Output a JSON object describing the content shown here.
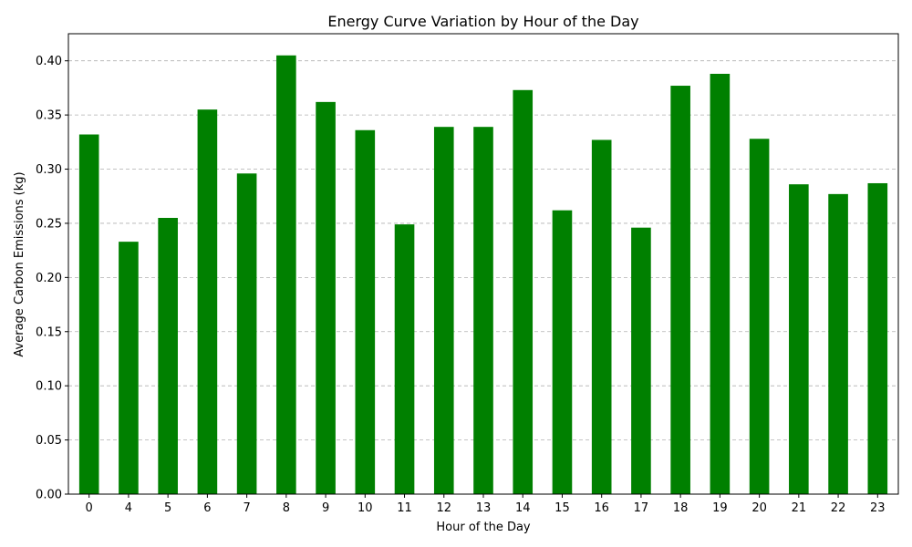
{
  "chart_data": {
    "type": "bar",
    "title": "Energy Curve Variation by Hour of the Day",
    "xlabel": "Hour of the Day",
    "ylabel": "Average Carbon Emissions (kg)",
    "categories": [
      "0",
      "4",
      "5",
      "6",
      "7",
      "8",
      "9",
      "10",
      "11",
      "12",
      "13",
      "14",
      "15",
      "16",
      "17",
      "18",
      "19",
      "20",
      "21",
      "22",
      "23"
    ],
    "values": [
      0.332,
      0.233,
      0.255,
      0.355,
      0.296,
      0.405,
      0.362,
      0.336,
      0.249,
      0.339,
      0.339,
      0.373,
      0.262,
      0.327,
      0.246,
      0.377,
      0.388,
      0.328,
      0.286,
      0.277,
      0.287
    ],
    "ylim": [
      0,
      0.425
    ],
    "yticks": [
      "0.00",
      "0.05",
      "0.10",
      "0.15",
      "0.20",
      "0.25",
      "0.30",
      "0.35",
      "0.40"
    ],
    "grid": "y-dashed",
    "bar_color": "#008000",
    "grid_color": "#b0b0b0"
  }
}
